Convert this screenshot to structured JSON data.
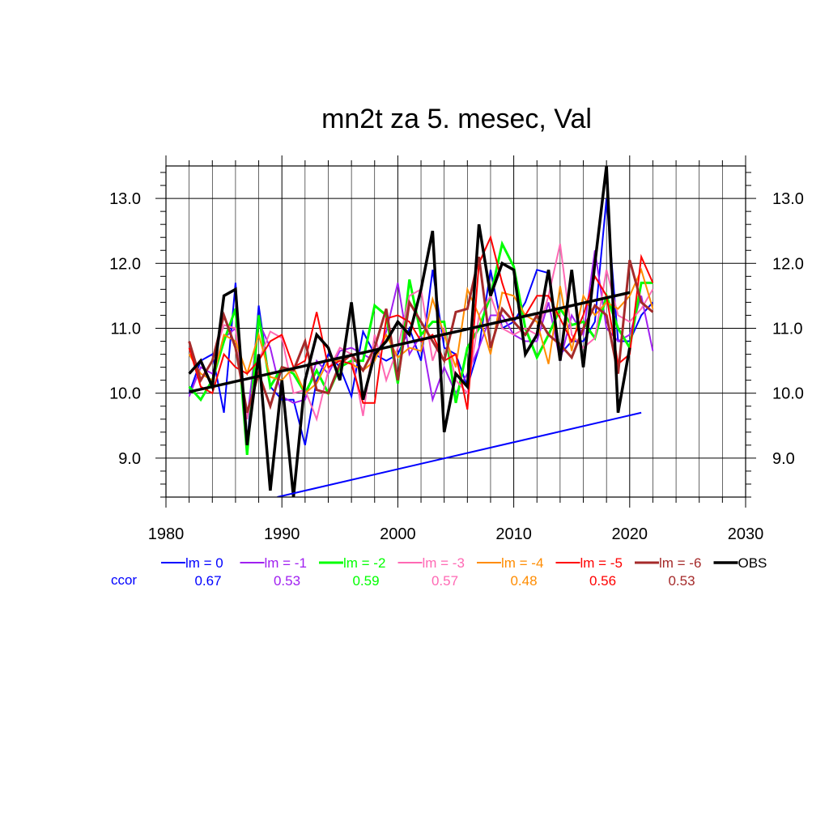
{
  "chart_data": {
    "type": "line",
    "title": "mn2t za 5. mesec, Val",
    "xlabel": "",
    "ylabel": "",
    "xlim": [
      1980,
      2030
    ],
    "ylim": [
      8.4,
      13.5
    ],
    "xticks": [
      1980,
      1990,
      2000,
      2010,
      2020,
      2030
    ],
    "xtick_labels": [
      "1980",
      "1990",
      "2000",
      "2010",
      "2020",
      "2030"
    ],
    "yticks": [
      9.0,
      10.0,
      11.0,
      12.0,
      13.0
    ],
    "ytick_labels": [
      "9.0",
      "10.0",
      "11.0",
      "12.0",
      "13.0"
    ],
    "grid": true,
    "legend_position": "bottom",
    "ccor_label": "ccor",
    "series": [
      {
        "name": "lm = 0",
        "color": "#0000ff",
        "width": 2,
        "ccor": "0.67",
        "x_start": 1982,
        "values": [
          10.0,
          10.5,
          10.6,
          9.7,
          11.7,
          9.2,
          11.35,
          10.1,
          9.9,
          9.9,
          9.2,
          10.2,
          10.6,
          10.4,
          9.95,
          10.95,
          10.6,
          10.5,
          10.6,
          11.0,
          10.5,
          11.9,
          10.7,
          10.6,
          10.1,
          10.7,
          11.9,
          11.0,
          11.1,
          11.4,
          11.9,
          11.85,
          10.6,
          10.8,
          10.8,
          11.1,
          13.0,
          10.8,
          10.8,
          11.2,
          11.4
        ]
      },
      {
        "name": "lm = -1",
        "color": "#a020f0",
        "width": 2,
        "ccor": "0.53",
        "x_start": 1982,
        "values": [
          9.95,
          10.4,
          10.3,
          10.85,
          11.0,
          9.6,
          11.1,
          10.7,
          9.95,
          9.85,
          9.9,
          10.5,
          10.3,
          10.65,
          10.7,
          10.6,
          10.5,
          10.95,
          11.7,
          10.6,
          10.9,
          9.9,
          10.4,
          10.0,
          10.3,
          10.7,
          11.2,
          11.2,
          10.9,
          10.8,
          10.8,
          11.4,
          10.5,
          11.2,
          10.9,
          12.2,
          11.0,
          10.8,
          10.9,
          11.5,
          10.65
        ]
      },
      {
        "name": "lm = -2",
        "color": "#00ff00",
        "width": 3,
        "ccor": "0.59",
        "x_start": 1982,
        "values": [
          10.1,
          9.9,
          10.2,
          10.8,
          11.3,
          9.05,
          11.2,
          10.1,
          10.4,
          10.3,
          10.0,
          10.35,
          10.0,
          10.4,
          10.5,
          10.5,
          11.35,
          11.2,
          10.15,
          11.75,
          10.9,
          11.1,
          11.1,
          9.85,
          10.7,
          11.0,
          11.5,
          12.3,
          11.95,
          11.0,
          10.55,
          10.9,
          11.3,
          11.05,
          11.1,
          10.85,
          11.5,
          11.0,
          10.7,
          11.7,
          11.7
        ]
      },
      {
        "name": "lm = -3",
        "color": "#ff69b4",
        "width": 2,
        "ccor": "0.57",
        "x_start": 1982,
        "values": [
          10.7,
          10.2,
          10.5,
          11.05,
          11.0,
          9.6,
          10.5,
          10.95,
          10.85,
          10.0,
          10.05,
          9.6,
          10.35,
          10.7,
          10.6,
          9.65,
          10.9,
          10.2,
          10.7,
          11.5,
          11.6,
          10.5,
          11.0,
          10.2,
          10.0,
          11.2,
          11.5,
          11.0,
          10.9,
          11.0,
          10.9,
          11.5,
          12.3,
          10.9,
          10.7,
          10.85,
          11.9,
          11.2,
          11.1,
          11.3,
          11.6
        ]
      },
      {
        "name": "lm = -4",
        "color": "#ff8c00",
        "width": 2,
        "ccor": "0.48",
        "x_start": 1982,
        "values": [
          10.6,
          10.3,
          10.2,
          10.9,
          10.8,
          10.3,
          10.9,
          10.25,
          10.2,
          10.4,
          10.0,
          10.15,
          10.5,
          10.5,
          10.45,
          10.35,
          10.5,
          10.9,
          10.55,
          10.7,
          10.65,
          11.45,
          10.9,
          10.4,
          11.6,
          11.2,
          10.6,
          11.55,
          11.5,
          11.2,
          11.1,
          10.45,
          11.65,
          10.65,
          11.5,
          11.2,
          11.4,
          11.3,
          11.5,
          11.9,
          11.3
        ]
      },
      {
        "name": "lm = -5",
        "color": "#ff0000",
        "width": 2,
        "ccor": "0.56",
        "x_start": 1982,
        "values": [
          10.7,
          10.1,
          10.0,
          10.6,
          10.4,
          10.3,
          10.5,
          10.8,
          10.9,
          10.4,
          10.5,
          11.25,
          10.4,
          10.5,
          10.45,
          9.85,
          9.85,
          11.15,
          11.2,
          11.1,
          10.8,
          10.9,
          10.5,
          10.6,
          9.75,
          12.0,
          12.4,
          11.7,
          11.15,
          11.2,
          11.5,
          11.5,
          11.15,
          10.8,
          11.2,
          11.8,
          11.5,
          10.45,
          10.6,
          12.1,
          11.7
        ]
      },
      {
        "name": "lm = -6",
        "color": "#a52a2a",
        "width": 3,
        "ccor": "0.53",
        "x_start": 1982,
        "values": [
          10.8,
          10.2,
          10.5,
          11.2,
          10.7,
          9.7,
          10.3,
          9.8,
          10.4,
          10.35,
          10.8,
          10.05,
          10.0,
          10.45,
          10.6,
          10.35,
          10.7,
          11.3,
          10.2,
          11.4,
          11.1,
          10.8,
          10.5,
          11.25,
          11.3,
          12.1,
          10.7,
          11.3,
          11.1,
          10.9,
          11.2,
          10.9,
          10.75,
          10.55,
          11.0,
          11.35,
          11.2,
          10.3,
          12.05,
          11.4,
          11.25
        ]
      },
      {
        "name": "OBS",
        "color": "#000000",
        "width": 3.5,
        "ccor": "",
        "x_start": 1982,
        "values": [
          10.3,
          10.5,
          10.1,
          11.5,
          11.6,
          9.2,
          10.6,
          8.5,
          10.2,
          8.4,
          10.2,
          10.9,
          10.7,
          10.2,
          11.4,
          9.9,
          10.6,
          10.8,
          11.1,
          10.9,
          11.6,
          12.5,
          9.4,
          10.3,
          10.1,
          12.6,
          11.5,
          12.0,
          11.9,
          10.6,
          10.9,
          11.9,
          10.5,
          11.9,
          10.4,
          12.0,
          13.5,
          9.7,
          10.7
        ]
      }
    ],
    "trend_lines": [
      {
        "name": "OBS trend",
        "color": "#000000",
        "width": 3.5,
        "x": [
          1982,
          2020
        ],
        "y": [
          10.02,
          11.55
        ]
      },
      {
        "name": "lm = 0 trend",
        "color": "#0000ff",
        "width": 2,
        "x": [
          1989.6,
          2021
        ],
        "y": [
          8.4,
          9.7
        ]
      }
    ]
  }
}
